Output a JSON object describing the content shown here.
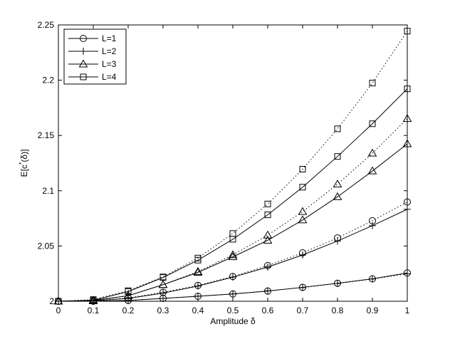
{
  "chart_data": {
    "type": "line",
    "xlabel": "Amplitude δ",
    "ylabel": "E[c^*(δ)]",
    "xlim": [
      0,
      1
    ],
    "ylim": [
      2,
      2.25
    ],
    "xticks": [
      "0",
      "0.1",
      "0.2",
      "0.3",
      "0.4",
      "0.5",
      "0.6",
      "0.7",
      "0.8",
      "0.9",
      "1"
    ],
    "yticks": [
      "2",
      "2.05",
      "2.1",
      "2.15",
      "2.2",
      "2.25"
    ],
    "legend_position": "top-left",
    "x": [
      0,
      0.1,
      0.2,
      0.3,
      0.4,
      0.5,
      0.6,
      0.7,
      0.8,
      0.9,
      1.0
    ],
    "series": [
      {
        "name": "L=1",
        "marker": "circle",
        "style": "solid",
        "values": [
          2.0,
          2.0001,
          2.0007,
          2.0026,
          2.0045,
          2.0066,
          2.0092,
          2.0126,
          2.0163,
          2.0203,
          2.0256
        ]
      },
      {
        "name": "L=1",
        "marker": "circle",
        "style": "dotted",
        "values": [
          2.0,
          2.0002,
          2.0029,
          2.0081,
          2.0143,
          2.0224,
          2.0323,
          2.0438,
          2.0573,
          2.0728,
          2.0898
        ]
      },
      {
        "name": "L=2",
        "marker": "plus",
        "style": "solid",
        "values": [
          2.0,
          2.0005,
          2.0026,
          2.0074,
          2.0138,
          2.0218,
          2.0309,
          2.0419,
          2.0545,
          2.0684,
          2.0832
        ]
      },
      {
        "name": "L=2",
        "marker": "plus",
        "style": "dotted",
        "values": [
          2.0,
          2.0002,
          2.0007,
          2.0026,
          2.0046,
          2.0066,
          2.0094,
          2.0124,
          2.0161,
          2.0201,
          2.0248
        ]
      },
      {
        "name": "L=3",
        "marker": "triangle",
        "style": "solid",
        "values": [
          2.0,
          2.0008,
          2.005,
          2.015,
          2.0261,
          2.0402,
          2.0551,
          2.0735,
          2.0945,
          2.1178,
          2.1424
        ]
      },
      {
        "name": "L=3",
        "marker": "triangle",
        "style": "dotted",
        "values": [
          2.0,
          2.0003,
          2.005,
          2.015,
          2.0268,
          2.042,
          2.0598,
          2.0811,
          2.1059,
          2.1339,
          2.1652
        ]
      },
      {
        "name": "L=4",
        "marker": "square",
        "style": "solid",
        "values": [
          2.0,
          2.0009,
          2.0088,
          2.0215,
          2.0372,
          2.0561,
          2.0782,
          2.1032,
          2.131,
          2.1606,
          2.1922
        ]
      },
      {
        "name": "L=4",
        "marker": "square",
        "style": "dotted",
        "values": [
          2.0,
          2.0015,
          2.0095,
          2.022,
          2.0391,
          2.0613,
          2.088,
          2.1195,
          2.156,
          2.1974,
          2.2444
        ]
      }
    ]
  },
  "legend": [
    {
      "label": "L=1",
      "marker": "circle"
    },
    {
      "label": "L=2",
      "marker": "plus"
    },
    {
      "label": "L=3",
      "marker": "triangle"
    },
    {
      "label": "L=4",
      "marker": "square"
    }
  ]
}
